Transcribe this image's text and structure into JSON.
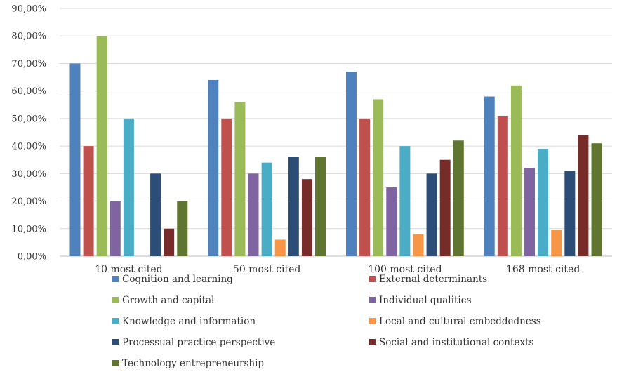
{
  "chart_data": {
    "type": "bar",
    "title": "",
    "xlabel": "",
    "ylabel": "",
    "ylim": [
      0,
      90
    ],
    "y_tick_step": 10,
    "y_tick_format": "percent_comma_2dp",
    "grid": "horizontal",
    "legend_position": "bottom",
    "categories": [
      "10 most cited",
      "50 most cited",
      "100 most cited",
      "168 most cited"
    ],
    "series": [
      {
        "name": "Cognition and learning",
        "color": "#4f81bd",
        "values": [
          70,
          64,
          67,
          58
        ]
      },
      {
        "name": "External determinants",
        "color": "#c0504d",
        "values": [
          40,
          50,
          50,
          51
        ]
      },
      {
        "name": "Growth and capital",
        "color": "#9bbb59",
        "values": [
          80,
          56,
          57,
          62
        ]
      },
      {
        "name": "Individual qualities",
        "color": "#8064a2",
        "values": [
          20,
          30,
          25,
          32
        ]
      },
      {
        "name": "Knowledge and information",
        "color": "#4bacc6",
        "values": [
          50,
          34,
          40,
          39
        ]
      },
      {
        "name": "Local and cultural embeddedness",
        "color": "#f79646",
        "values": [
          0,
          6,
          8,
          9.5
        ]
      },
      {
        "name": "Processual practice perspective",
        "color": "#2c4d75",
        "values": [
          30,
          36,
          30,
          31
        ]
      },
      {
        "name": "Social and institutional contexts",
        "color": "#772c2a",
        "values": [
          10,
          28,
          35,
          44
        ]
      },
      {
        "name": "Technology entrepreneurship",
        "color": "#5f7530",
        "values": [
          20,
          36,
          42,
          41
        ]
      }
    ]
  }
}
